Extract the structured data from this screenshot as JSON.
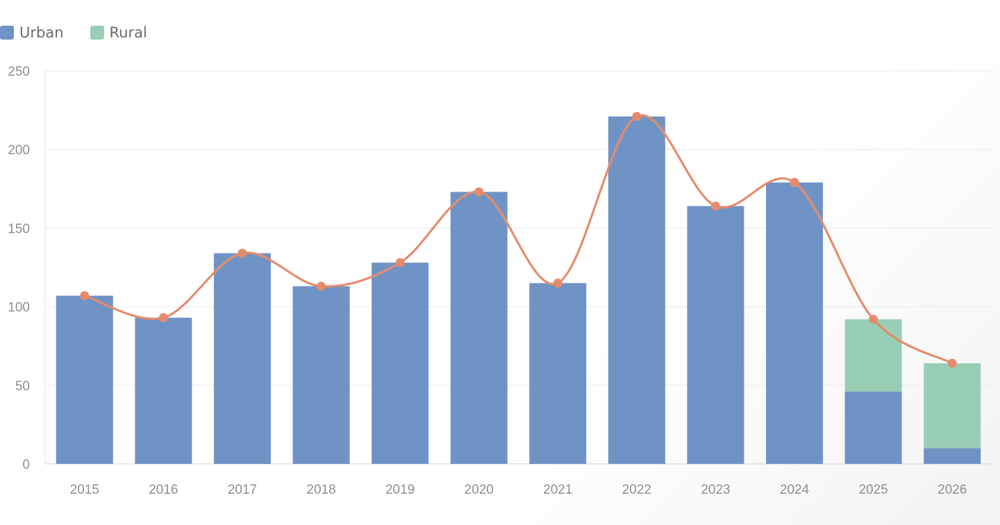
{
  "chart_data": {
    "type": "bar",
    "stacked": true,
    "categories": [
      "2015",
      "2016",
      "2017",
      "2018",
      "2019",
      "2020",
      "2021",
      "2022",
      "2023",
      "2024",
      "2025",
      "2026"
    ],
    "series": [
      {
        "name": "Urban",
        "type": "bar",
        "color": "#7093c6",
        "values": [
          107,
          93,
          134,
          113,
          128,
          173,
          115,
          221,
          164,
          179,
          46,
          10
        ]
      },
      {
        "name": "Rural",
        "type": "bar",
        "color": "#99ceb6",
        "values": [
          0,
          0,
          0,
          0,
          0,
          0,
          0,
          0,
          0,
          0,
          46,
          54
        ]
      },
      {
        "type": "line",
        "color": "#e58b6d",
        "values": [
          107,
          93,
          134,
          113,
          128,
          173,
          115,
          221,
          164,
          179,
          92,
          64
        ]
      }
    ],
    "ylim": [
      0,
      250
    ],
    "yticks": [
      0,
      50,
      100,
      150,
      200,
      250
    ],
    "grid": true,
    "legend_position": "top-left",
    "title": "",
    "xlabel": "",
    "ylabel": ""
  }
}
